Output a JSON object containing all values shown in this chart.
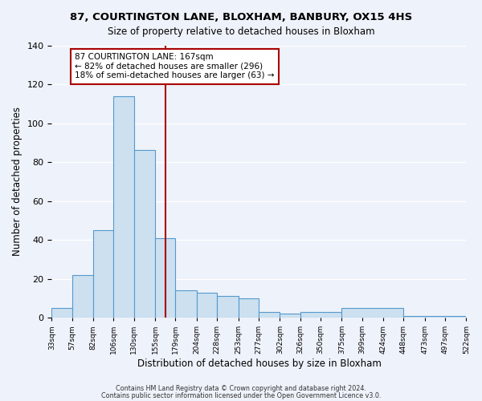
{
  "title": "87, COURTINGTON LANE, BLOXHAM, BANBURY, OX15 4HS",
  "subtitle": "Size of property relative to detached houses in Bloxham",
  "xlabel": "Distribution of detached houses by size in Bloxham",
  "ylabel": "Number of detached properties",
  "bar_values": [
    5,
    22,
    45,
    114,
    86,
    41,
    14,
    13,
    11,
    10,
    3,
    2,
    3,
    5,
    1
  ],
  "bin_edges": [
    33,
    57,
    82,
    106,
    130,
    155,
    179,
    204,
    228,
    253,
    277,
    302,
    326,
    375,
    448,
    522
  ],
  "tick_labels": [
    "33sqm",
    "57sqm",
    "82sqm",
    "106sqm",
    "130sqm",
    "155sqm",
    "179sqm",
    "204sqm",
    "228sqm",
    "253sqm",
    "277sqm",
    "302sqm",
    "326sqm",
    "350sqm",
    "375sqm",
    "399sqm",
    "424sqm",
    "448sqm",
    "473sqm",
    "497sqm",
    "522sqm"
  ],
  "tick_positions": [
    33,
    57,
    82,
    106,
    130,
    155,
    179,
    204,
    228,
    253,
    277,
    302,
    326,
    350,
    375,
    399,
    424,
    448,
    473,
    497,
    522
  ],
  "bar_color": "#cce0f0",
  "bar_edge_color": "#5599cc",
  "reference_line_x": 167,
  "reference_line_color": "#aa0000",
  "annotation_title": "87 COURTINGTON LANE: 167sqm",
  "annotation_line1": "← 82% of detached houses are smaller (296)",
  "annotation_line2": "18% of semi-detached houses are larger (63) →",
  "annotation_box_facecolor": "#ffffff",
  "annotation_box_edgecolor": "#aa0000",
  "ylim": [
    0,
    140
  ],
  "yticks": [
    0,
    20,
    40,
    60,
    80,
    100,
    120,
    140
  ],
  "footer1": "Contains HM Land Registry data © Crown copyright and database right 2024.",
  "footer2": "Contains public sector information licensed under the Open Government Licence v3.0.",
  "bg_color": "#eef2fa",
  "grid_color": "#ffffff"
}
